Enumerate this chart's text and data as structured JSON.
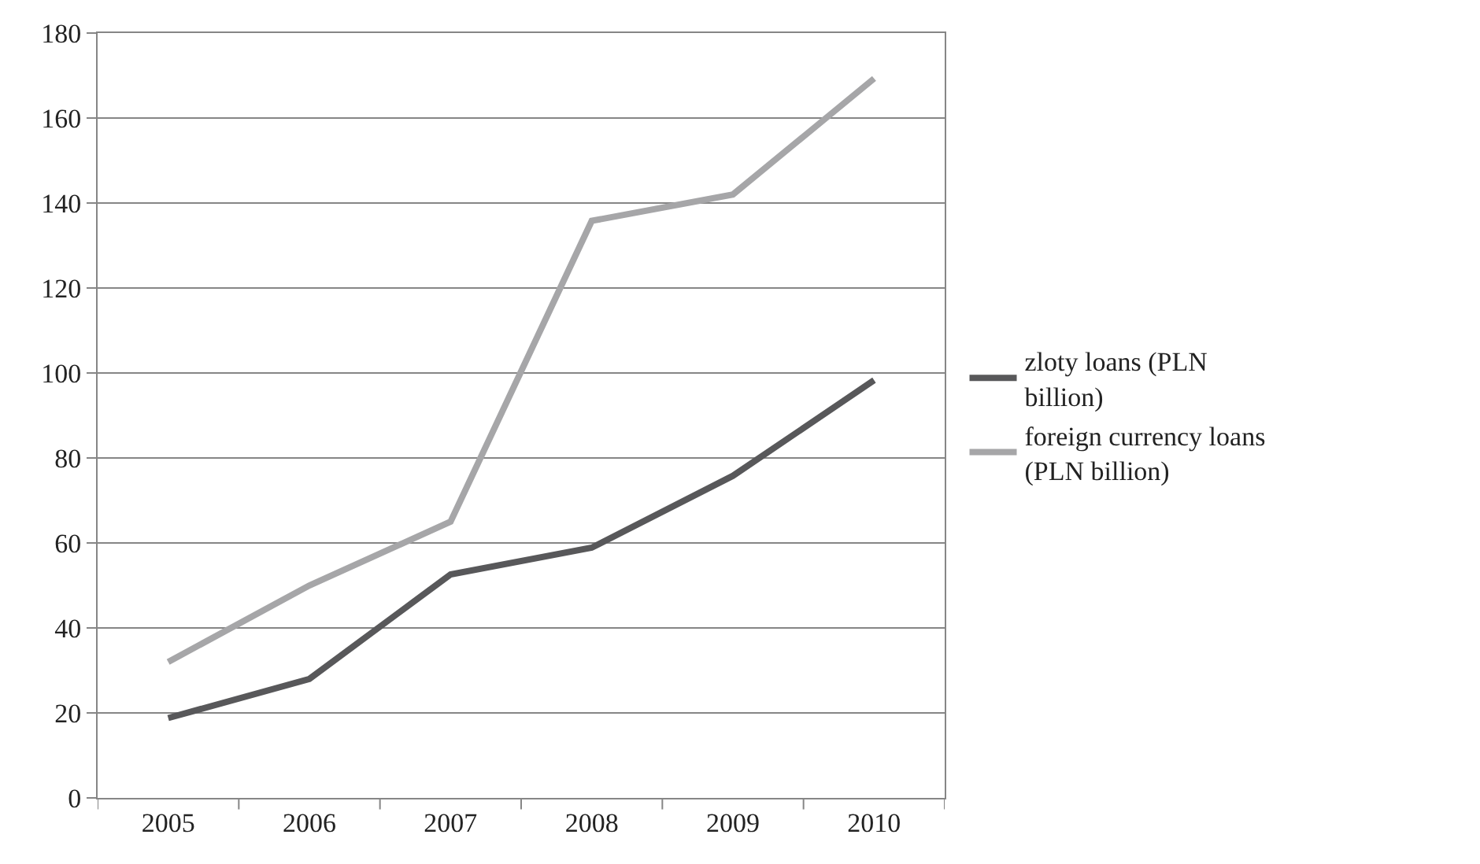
{
  "chart_data": {
    "type": "line",
    "categories": [
      "2005",
      "2006",
      "2007",
      "2008",
      "2009",
      "2010"
    ],
    "series": [
      {
        "name": "zloty loans (PLN billion)",
        "color": "#58585a",
        "values": [
          18.8,
          28,
          52.6,
          58.9,
          75.8,
          98.3
        ]
      },
      {
        "name": "foreign currency loans (PLN billion)",
        "color": "#a6a6a8",
        "values": [
          32,
          50,
          65,
          135.8,
          142,
          169.3
        ]
      }
    ],
    "ylim": [
      0,
      180
    ],
    "yticks": [
      0,
      20,
      40,
      60,
      80,
      100,
      120,
      140,
      160,
      180
    ],
    "grid": "y",
    "legend": "right",
    "marker": "none",
    "line_style": "solid"
  }
}
